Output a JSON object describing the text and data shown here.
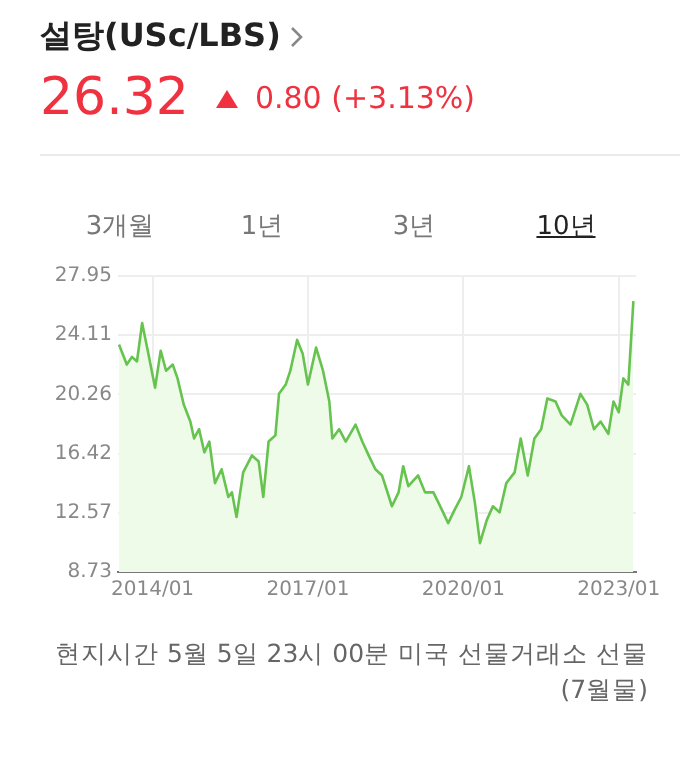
{
  "chart_data": {
    "type": "area",
    "title": "설탕(USc/LBS)",
    "subtitle": "26.32",
    "annotations": [
      "0.80 (+3.13%)",
      "3개월",
      "1년",
      "3년",
      "10년",
      "현지시간 5월 5일 23시 00분 미국 선물거래소 선물(7월물)"
    ],
    "x": [
      "2013-05-08",
      "2013-06-03",
      "2013-07-02",
      "2013-08-08",
      "2013-09-13",
      "2013-10-19",
      "2013-12-02",
      "2014-01-19",
      "2014-02-28",
      "2014-04-05",
      "2014-05-22",
      "2014-06-25",
      "2014-08-08",
      "2014-09-24",
      "2014-10-20",
      "2014-11-25",
      "2015-01-01",
      "2015-02-06",
      "2015-03-15",
      "2015-05-01",
      "2015-06-18",
      "2015-07-13",
      "2015-08-15",
      "2015-10-01",
      "2015-12-02",
      "2016-01-19",
      "2016-02-21",
      "2016-03-28",
      "2016-05-15",
      "2016-06-10",
      "2016-07-27",
      "2016-08-29",
      "2016-10-16",
      "2016-11-25",
      "2017-01-01",
      "2017-02-28",
      "2017-04-16",
      "2017-05-30",
      "2017-06-21",
      "2017-08-08",
      "2017-09-24",
      "2017-12-02",
      "2018-01-19",
      "2018-03-03",
      "2018-04-20",
      "2018-06-06",
      "2018-08-15",
      "2018-10-01",
      "2018-11-03",
      "2018-12-09",
      "2019-02-17",
      "2019-04-05",
      "2019-06-03",
      "2019-07-31",
      "2019-09-16",
      "2019-11-02",
      "2019-12-17",
      "2020-02-10",
      "2020-03-22",
      "2020-04-27",
      "2020-06-14",
      "2020-07-27",
      "2020-09-13",
      "2020-10-30",
      "2020-12-28",
      "2021-02-10",
      "2021-03-29",
      "2021-05-15",
      "2021-07-02",
      "2021-08-15",
      "2021-10-12",
      "2021-11-25",
      "2022-01-26",
      "2022-04-05",
      "2022-05-22",
      "2022-07-09",
      "2022-08-25",
      "2022-10-19",
      "2022-11-25",
      "2023-01-01",
      "2023-02-03",
      "2023-03-08",
      "2023-04-13"
    ],
    "series": [
      {
        "color": "#66c34f",
        "values": [
          23.5,
          22.9,
          22.2,
          22.7,
          22.4,
          24.9,
          22.9,
          20.7,
          23.1,
          21.8,
          22.2,
          21.3,
          19.6,
          18.5,
          17.4,
          18.0,
          16.5,
          17.2,
          14.5,
          15.4,
          13.6,
          13.9,
          12.3,
          15.2,
          16.3,
          15.9,
          13.6,
          17.2,
          17.6,
          20.3,
          20.9,
          21.8,
          23.8,
          22.9,
          20.9,
          23.3,
          21.8,
          19.8,
          17.4,
          18.0,
          17.2,
          18.3,
          17.2,
          16.3,
          15.4,
          15.0,
          13.0,
          13.9,
          15.6,
          14.3,
          15.0,
          13.9,
          13.9,
          12.8,
          11.9,
          12.8,
          13.6,
          15.6,
          13.2,
          10.6,
          12.1,
          13.0,
          12.6,
          14.5,
          15.2,
          17.4,
          15.0,
          17.4,
          18.0,
          20.0,
          19.8,
          18.9,
          18.3,
          20.3,
          19.6,
          18.0,
          18.5,
          17.7,
          19.8,
          19.1,
          21.3,
          20.9,
          26.32
        ]
      }
    ],
    "xlim": [
      "2013-05",
      "2023-05"
    ],
    "xticks": [
      {
        "value": "2014-01",
        "label": "2014/01"
      },
      {
        "value": "2017-01",
        "label": "2017/01"
      },
      {
        "value": "2020-01",
        "label": "2020/01"
      },
      {
        "value": "2023-01",
        "label": "2023/01"
      }
    ],
    "ylim": [
      8.73,
      27.95
    ],
    "yticks": [
      8.73,
      12.57,
      16.42,
      20.26,
      24.11,
      27.95
    ],
    "grid": true,
    "legend": false,
    "marker": "none"
  }
}
